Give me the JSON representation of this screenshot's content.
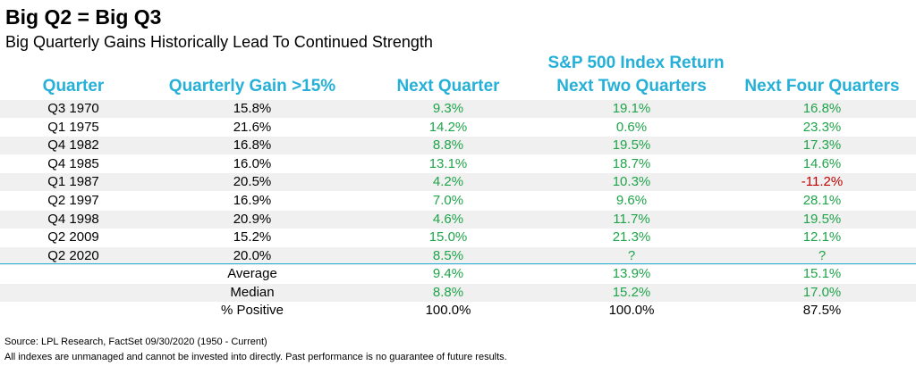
{
  "title": "Big Q2 = Big Q3",
  "subtitle": "Big Quarterly Gains Historically Lead To Continued Strength",
  "group_header": "S&P 500 Index Return",
  "headers": [
    "Quarter",
    "Quarterly Gain >15%",
    "Next Quarter",
    "Next Two Quarters",
    "Next Four Quarters"
  ],
  "colors": {
    "header": "#26B0D8",
    "positive": "#1FA44A",
    "negative": "#C00000",
    "shade": "#F0F0F0"
  },
  "chart_data": {
    "type": "table",
    "columns": [
      "Quarter",
      "Quarterly Gain >15%",
      "Next Quarter",
      "Next Two Quarters",
      "Next Four Quarters"
    ],
    "rows": [
      {
        "quarter": "Q3 1970",
        "gain": "15.8%",
        "next1": "9.3%",
        "next2": "19.1%",
        "next4": "16.8%"
      },
      {
        "quarter": "Q1 1975",
        "gain": "21.6%",
        "next1": "14.2%",
        "next2": "0.6%",
        "next4": "23.3%"
      },
      {
        "quarter": "Q4 1982",
        "gain": "16.8%",
        "next1": "8.8%",
        "next2": "19.5%",
        "next4": "17.3%"
      },
      {
        "quarter": "Q4 1985",
        "gain": "16.0%",
        "next1": "13.1%",
        "next2": "18.7%",
        "next4": "14.6%"
      },
      {
        "quarter": "Q1 1987",
        "gain": "20.5%",
        "next1": "4.2%",
        "next2": "10.3%",
        "next4": "-11.2%"
      },
      {
        "quarter": "Q2 1997",
        "gain": "16.9%",
        "next1": "7.0%",
        "next2": "9.6%",
        "next4": "28.1%"
      },
      {
        "quarter": "Q4 1998",
        "gain": "20.9%",
        "next1": "4.6%",
        "next2": "11.7%",
        "next4": "19.5%"
      },
      {
        "quarter": "Q2 2009",
        "gain": "15.2%",
        "next1": "15.0%",
        "next2": "21.3%",
        "next4": "12.1%"
      },
      {
        "quarter": "Q2 2020",
        "gain": "20.0%",
        "next1": "8.5%",
        "next2": "?",
        "next4": "?"
      }
    ],
    "summary": [
      {
        "label": "Average",
        "next1": "9.4%",
        "next2": "13.9%",
        "next4": "15.1%"
      },
      {
        "label": "Median",
        "next1": "8.8%",
        "next2": "15.2%",
        "next4": "17.0%"
      },
      {
        "label": "% Positive",
        "next1": "100.0%",
        "next2": "100.0%",
        "next4": "87.5%"
      }
    ]
  },
  "source": "Source: LPL Research, FactSet 09/30/2020 (1950 - Current)",
  "disclaimer": "All indexes are unmanaged and cannot be invested into directly. Past performance is no guarantee of future results."
}
